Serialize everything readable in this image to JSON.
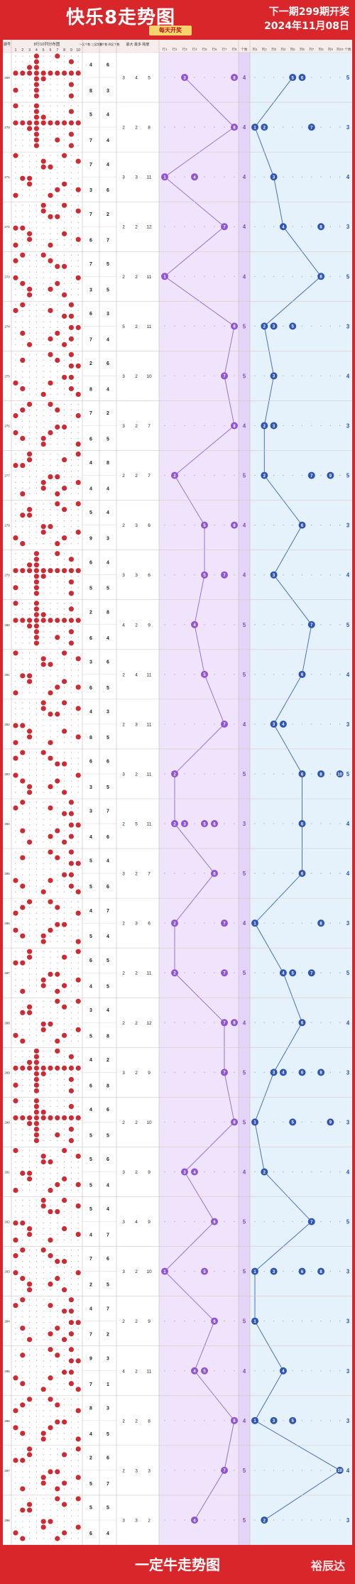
{
  "header": {
    "title": "快乐8走势图",
    "badge": "每天开奖",
    "next_issue": "下一期299期开奖",
    "draw_date": "2024年11月08日"
  },
  "columns": {
    "issue": "期号",
    "distribution": "8行10列分布图",
    "zone_counts_a": "一区个数 三区个数",
    "zone_counts_b": "二区个数 四区个数",
    "max_row_col": "最大 最多 跨度",
    "row_cols": [
      "行1",
      "行2",
      "行3",
      "行4",
      "行5",
      "行6",
      "行7",
      "行8"
    ],
    "row_count": "个数",
    "col_cols": [
      "列1",
      "列2",
      "列3",
      "列4",
      "列5",
      "列6",
      "列7",
      "列8",
      "列9",
      "列10"
    ],
    "col_count": "个数"
  },
  "footer": {
    "title": "一定牛走势图",
    "brand": "裕辰达"
  },
  "chart_data": {
    "type": "table",
    "issues": [
      269,
      270,
      271,
      272,
      273,
      274,
      275,
      276,
      277,
      278,
      279,
      280,
      281,
      282,
      283,
      284,
      285,
      286,
      287,
      288,
      289,
      290,
      291,
      292,
      293,
      294,
      295,
      296,
      297,
      298
    ],
    "zone_counts": [
      [
        4,
        6,
        8,
        3
      ],
      [
        5,
        4,
        7,
        4
      ],
      [
        7,
        4,
        3,
        6
      ],
      [
        7,
        2,
        6,
        7
      ],
      [
        7,
        5,
        3,
        5
      ],
      [
        6,
        3,
        7,
        4
      ],
      [
        2,
        6,
        8,
        4
      ],
      [
        7,
        2,
        6,
        5
      ],
      [
        4,
        8,
        4,
        4
      ],
      [
        5,
        4,
        9,
        3
      ],
      [
        6,
        4,
        5,
        5
      ],
      [
        2,
        8,
        6,
        4
      ],
      [
        3,
        6,
        6,
        5
      ],
      [
        4,
        3,
        8,
        5
      ],
      [
        6,
        6,
        3,
        5
      ],
      [
        3,
        7,
        4,
        6
      ],
      [
        5,
        4,
        5,
        6
      ],
      [
        4,
        7,
        5,
        4
      ],
      [
        6,
        5,
        4,
        5
      ],
      [
        3,
        4,
        5,
        8
      ],
      [
        4,
        2,
        6,
        8
      ],
      [
        4,
        6,
        5,
        5
      ],
      [
        5,
        6,
        5,
        4
      ],
      [
        5,
        4,
        4,
        7
      ],
      [
        7,
        6,
        2,
        5
      ],
      [
        4,
        7,
        7,
        2
      ],
      [
        9,
        3,
        7,
        1
      ],
      [
        8,
        3,
        4,
        5
      ],
      [
        2,
        6,
        5,
        7
      ],
      [
        5,
        5,
        6,
        4
      ]
    ],
    "max_stats": [
      [
        3,
        4,
        5
      ],
      [
        2,
        2,
        8
      ],
      [
        3,
        3,
        11
      ],
      [
        2,
        2,
        12
      ],
      [
        2,
        2,
        11
      ],
      [
        5,
        2,
        11
      ],
      [
        3,
        2,
        10
      ],
      [
        3,
        2,
        7
      ],
      [
        2,
        2,
        7
      ],
      [
        2,
        3,
        6
      ],
      [
        3,
        3,
        6
      ],
      [
        4,
        2,
        9
      ],
      [
        2,
        4,
        11
      ],
      [
        2,
        3,
        11
      ],
      [
        3,
        2,
        11
      ],
      [
        2,
        5,
        11
      ],
      [
        3,
        2,
        7
      ],
      [
        2,
        3,
        6
      ],
      [
        2,
        2,
        11
      ],
      [
        2,
        2,
        12
      ],
      [
        3,
        2,
        9
      ],
      [
        2,
        2,
        10
      ],
      [
        3,
        2,
        9
      ],
      [
        3,
        4,
        9
      ],
      [
        3,
        2,
        10
      ],
      [
        2,
        2,
        9
      ],
      [
        4,
        2,
        11
      ],
      [
        2,
        2,
        8
      ],
      [
        2,
        3,
        3
      ],
      [
        3,
        3,
        2
      ]
    ],
    "row_max": [
      [
        3,
        8
      ],
      [
        8
      ],
      [
        1,
        4
      ],
      [
        7
      ],
      [
        1
      ],
      [
        8
      ],
      [
        7
      ],
      [
        8
      ],
      [
        2
      ],
      [
        5,
        8
      ],
      [
        5,
        7
      ],
      [
        4
      ],
      [
        5
      ],
      [
        7
      ],
      [
        2
      ],
      [
        2,
        3,
        5,
        6
      ],
      [
        6
      ],
      [
        2,
        7
      ],
      [
        2,
        7
      ],
      [
        7,
        8
      ],
      [
        7
      ],
      [
        8
      ],
      [
        3,
        4
      ],
      [
        6
      ],
      [
        1,
        5
      ],
      [
        6
      ],
      [
        4,
        5
      ],
      [
        8
      ],
      [
        7
      ],
      [
        4
      ]
    ],
    "row_counts": [
      4,
      4,
      4,
      4,
      4,
      5,
      5,
      4,
      5,
      4,
      4,
      5,
      5,
      4,
      5,
      3,
      5,
      4,
      5,
      4,
      5,
      5,
      4,
      5,
      5,
      5,
      4,
      4,
      5,
      5
    ],
    "col_max": [
      [
        5,
        6
      ],
      [
        1,
        2,
        7
      ],
      [
        3
      ],
      [
        4,
        8
      ],
      [
        8
      ],
      [
        2,
        3,
        5
      ],
      [
        3
      ],
      [
        2,
        3
      ],
      [
        2,
        7,
        9
      ],
      [
        6
      ],
      [
        3
      ],
      [
        7
      ],
      [
        6
      ],
      [
        3,
        4
      ],
      [
        6,
        8,
        10
      ],
      [
        6
      ],
      [
        6
      ],
      [
        1,
        8
      ],
      [
        4,
        5,
        7
      ],
      [
        6
      ],
      [
        3,
        4,
        6,
        8
      ],
      [
        1,
        5,
        9
      ],
      [
        2
      ],
      [
        7
      ],
      [
        1,
        3,
        6,
        8
      ],
      [
        1
      ],
      [
        4
      ],
      [
        1,
        3,
        5
      ],
      [
        10
      ],
      [
        2
      ]
    ],
    "col_counts": [
      5,
      3,
      4,
      3,
      5,
      3,
      4,
      3,
      5,
      3,
      4,
      5,
      4,
      3,
      5,
      4,
      4,
      3,
      5,
      4,
      3,
      3,
      4,
      5,
      3,
      3,
      3,
      3,
      4,
      3
    ],
    "xlabel": "期号",
    "colors": {
      "row_line": "#9b6fd8",
      "row_ball": "#8e55d6",
      "col_line": "#4a6fc2",
      "col_ball": "#2f56b4",
      "red_ball": "#cc2b34"
    }
  }
}
